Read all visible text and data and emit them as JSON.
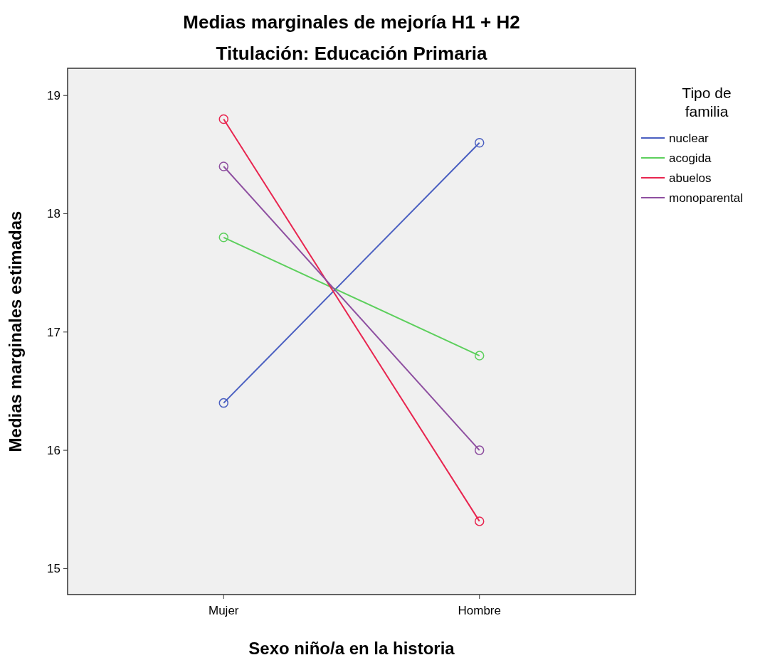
{
  "chart_data": {
    "type": "line",
    "title": "Medias marginales de mejoría H1 + H2",
    "subtitle": "Titulación: Educación Primaria",
    "xlabel": "Sexo niño/a en la historia",
    "ylabel": "Medias marginales estimadas",
    "legend_title": "Tipo de familia",
    "categories": [
      "Mujer",
      "Hombre"
    ],
    "series": [
      {
        "name": "nuclear",
        "color": "#4a5fc1",
        "values": [
          16.4,
          18.6
        ]
      },
      {
        "name": "acogida",
        "color": "#5ccf5c",
        "values": [
          17.8,
          16.8
        ]
      },
      {
        "name": "abuelos",
        "color": "#e8254f",
        "values": [
          18.8,
          15.4
        ]
      },
      {
        "name": "monoparental",
        "color": "#8e4fa0",
        "values": [
          18.4,
          16.0
        ]
      }
    ],
    "ylim": [
      14.78,
      19.23
    ],
    "yticks": [
      15,
      16,
      17,
      18,
      19
    ],
    "legend": "right",
    "marker": "circle",
    "line_style": "solid"
  }
}
